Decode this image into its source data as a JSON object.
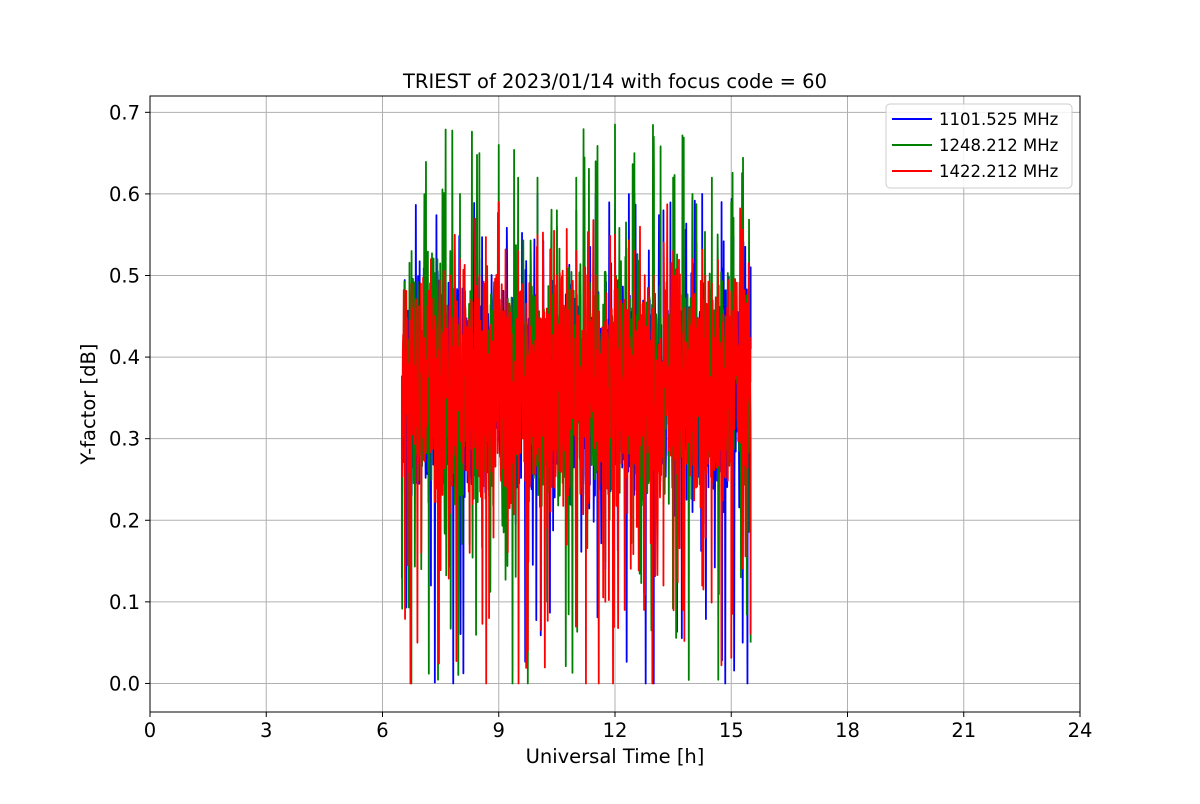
{
  "chart_data": {
    "type": "line",
    "title": "TRIEST of 2023/01/14 with focus code = 60",
    "xlabel": "Universal Time [h]",
    "ylabel": "Y-factor [dB]",
    "xlim": [
      0,
      24
    ],
    "ylim": [
      -0.035,
      0.72
    ],
    "xticks": [
      0,
      3,
      6,
      9,
      12,
      15,
      18,
      21,
      24
    ],
    "xtick_labels": [
      "0",
      "3",
      "6",
      "9",
      "12",
      "15",
      "18",
      "21",
      "24"
    ],
    "yticks": [
      0.0,
      0.1,
      0.2,
      0.3,
      0.4,
      0.5,
      0.6,
      0.7
    ],
    "ytick_labels": [
      "0.0",
      "0.1",
      "0.2",
      "0.3",
      "0.4",
      "0.5",
      "0.6",
      "0.7"
    ],
    "grid": true,
    "legend_position": "top-right",
    "data_extent_x": [
      6.5,
      15.5
    ],
    "series": [
      {
        "name": "1101.525 MHz",
        "color": "#0000ff",
        "summary": {
          "x_start": 6.5,
          "x_end": 15.5,
          "center": 0.36,
          "min": 0.0,
          "max": 0.6
        },
        "x": [
          6.5,
          6.75,
          7.0,
          7.25,
          7.5,
          7.75,
          8.0,
          8.25,
          8.5,
          8.75,
          9.0,
          9.25,
          9.5,
          9.75,
          10.0,
          10.25,
          10.5,
          10.75,
          11.0,
          11.25,
          11.5,
          11.75,
          12.0,
          12.25,
          12.5,
          12.75,
          13.0,
          13.25,
          13.5,
          13.75,
          14.0,
          14.25,
          14.5,
          14.75,
          15.0,
          15.25,
          15.5
        ],
        "y": [
          0.13,
          0.45,
          0.3,
          0.12,
          0.47,
          0.28,
          0.5,
          0.25,
          0.52,
          0.3,
          0.59,
          0.28,
          0.5,
          0.18,
          0.6,
          0.1,
          0.56,
          0.25,
          0.58,
          0.3,
          0.6,
          0.14,
          0.58,
          0.28,
          0.6,
          0.3,
          0.0,
          0.58,
          0.27,
          0.56,
          0.21,
          0.6,
          0.25,
          0.59,
          0.33,
          0.55,
          0.41
        ]
      },
      {
        "name": "1248.212 MHz",
        "color": "#008000",
        "summary": {
          "x_start": 6.5,
          "x_end": 15.5,
          "center": 0.37,
          "min": 0.0,
          "max": 0.685
        },
        "x": [
          6.5,
          6.75,
          7.0,
          7.25,
          7.5,
          7.75,
          8.0,
          8.25,
          8.5,
          8.75,
          9.0,
          9.25,
          9.5,
          9.75,
          10.0,
          10.25,
          10.5,
          10.75,
          11.0,
          11.25,
          11.5,
          11.75,
          12.0,
          12.25,
          12.5,
          12.75,
          13.0,
          13.25,
          13.5,
          13.75,
          14.0,
          14.25,
          14.5,
          14.75,
          15.0,
          15.25,
          15.5
        ],
        "y": [
          0.18,
          0.53,
          0.14,
          0.51,
          0.22,
          0.53,
          0.6,
          0.17,
          0.65,
          0.23,
          0.66,
          0.3,
          0.62,
          0.0,
          0.62,
          0.1,
          0.58,
          0.2,
          0.62,
          0.25,
          0.64,
          0.15,
          0.685,
          0.2,
          0.65,
          0.12,
          0.67,
          0.22,
          0.62,
          0.13,
          0.6,
          0.17,
          0.62,
          0.16,
          0.59,
          0.13,
          0.05
        ]
      },
      {
        "name": "1422.212 MHz",
        "color": "#ff0000",
        "summary": {
          "x_start": 6.5,
          "x_end": 15.5,
          "center": 0.36,
          "min": 0.0,
          "max": 0.59
        },
        "x": [
          6.5,
          6.75,
          7.0,
          7.25,
          7.5,
          7.75,
          8.0,
          8.25,
          8.5,
          8.75,
          9.0,
          9.25,
          9.5,
          9.75,
          10.0,
          10.25,
          10.5,
          10.75,
          11.0,
          11.25,
          11.5,
          11.75,
          12.0,
          12.25,
          12.5,
          12.75,
          13.0,
          13.25,
          13.5,
          13.75,
          14.0,
          14.25,
          14.5,
          14.75,
          15.0,
          15.25,
          15.5
        ],
        "y": [
          0.27,
          0.49,
          0.16,
          0.52,
          0.22,
          0.5,
          0.52,
          0.16,
          0.5,
          0.08,
          0.59,
          0.22,
          0.53,
          0.04,
          0.55,
          0.19,
          0.5,
          0.17,
          0.53,
          0.0,
          0.5,
          0.1,
          0.55,
          0.09,
          0.53,
          0.09,
          0.5,
          0.12,
          0.53,
          0.09,
          0.52,
          0.12,
          0.49,
          0.16,
          0.48,
          0.3,
          0.06
        ]
      }
    ]
  }
}
